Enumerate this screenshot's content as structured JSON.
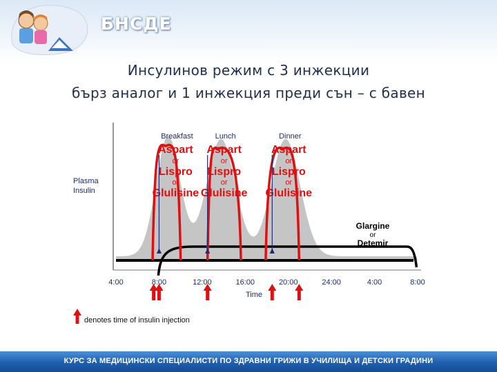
{
  "header": {
    "org_name": "БНСДЕ",
    "title_line1": "Инсулинов режим с 3 инжекции",
    "title_line2": "бърз аналог и 1 инжекция преди сън – с бавен"
  },
  "footer": {
    "text": "КУРС ЗА МЕДИЦИНСКИ СПЕЦИАЛИСТИ ПО ЗДРАВНИ ГРИЖИ В УЧИЛИЩА И ДЕТСКИ ГРАДИНИ"
  },
  "chart_data": {
    "type": "line",
    "title": "",
    "xlabel": "Time",
    "ylabel": "Plasma Insulin",
    "x_ticks": [
      "4:00",
      "8:00",
      "12:00",
      "16:00",
      "20:00",
      "24:00",
      "4:00",
      "8:00"
    ],
    "meal_labels": [
      "Breakfast",
      "Lunch",
      "Dinner"
    ],
    "bolus_label_lines": [
      "Aspart",
      "or",
      "Lispro",
      "or",
      "Glulisine"
    ],
    "basal_label_lines": [
      "Glargine",
      "or",
      "Detemir"
    ],
    "legend_text": "denotes time of insulin injection",
    "x_range_hours": [
      4,
      32
    ],
    "ylim": [
      0,
      1
    ],
    "meal_times_hours": [
      8,
      12.5,
      18.5
    ],
    "bolus_peak_hours": [
      8.6,
      13.5,
      19.5
    ],
    "injection_times_hours": [
      7.5,
      8,
      12.5,
      18.5,
      21
    ],
    "series": [
      {
        "name": "Aspart or Lispro or Glulisine",
        "color": "#dd1111",
        "peaks": [
          {
            "start": 7.4,
            "peak": 8.6,
            "end": 10,
            "level": 0.83
          },
          {
            "start": 12.5,
            "peak": 13.5,
            "end": 15.6,
            "level": 0.81
          },
          {
            "start": 17.9,
            "peak": 19.5,
            "end": 21,
            "level": 0.81
          }
        ]
      },
      {
        "name": "Glargine or Detemir",
        "color": "#000000",
        "start": 8,
        "plateau": 0.1
      }
    ],
    "physiologic_profile_color": "#bbbbbb",
    "grid": false
  }
}
